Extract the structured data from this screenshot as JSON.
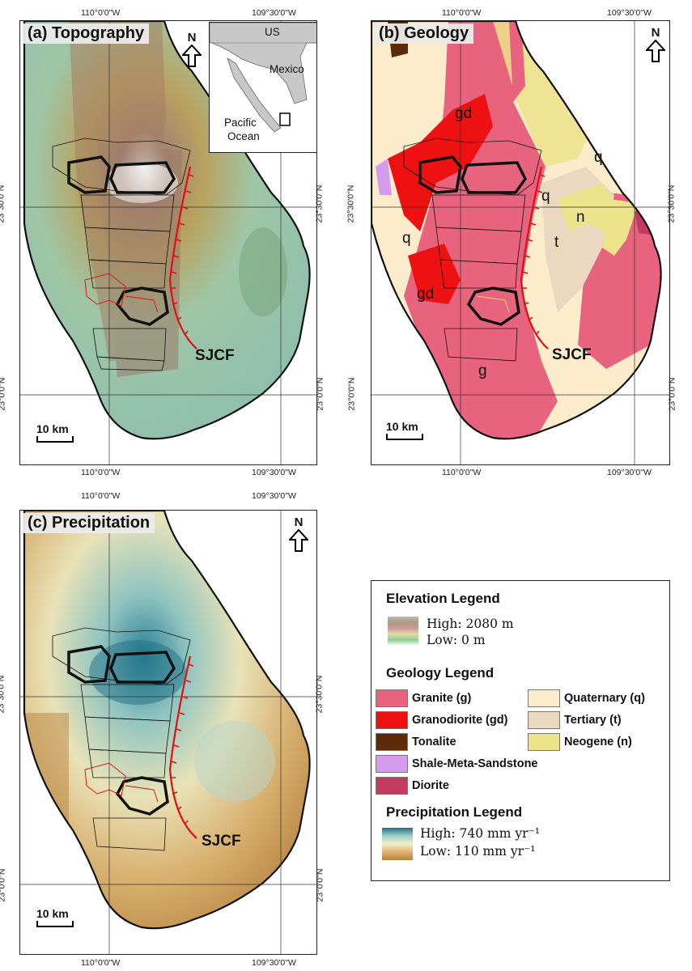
{
  "panels": {
    "a": {
      "title": "(a) Topography"
    },
    "b": {
      "title": "(b) Geology"
    },
    "c": {
      "title": "(c) Precipitation"
    }
  },
  "coords": {
    "lon1": "110°0'0\"W",
    "lon2": "109°30'0\"W",
    "lat1": "23°30'0\"N",
    "lat2": "23°0'0\"N"
  },
  "north_label": "N",
  "scale_label": "10 km",
  "fault_label": "SJCF",
  "inset": {
    "us": "US",
    "mexico": "Mexico",
    "ocean_line1": "Pacific",
    "ocean_line2": "Ocean"
  },
  "geology_map_labels": {
    "gd": "gd",
    "q": "q",
    "n": "n",
    "t": "t",
    "g": "g"
  },
  "legend": {
    "elevation": {
      "title": "Elevation Legend",
      "high": "High: 2080 m",
      "low": "Low: 0 m"
    },
    "geology": {
      "title": "Geology Legend",
      "items": [
        {
          "label": "Granite (g)",
          "color": "#e8637e"
        },
        {
          "label": "Granodiorite (gd)",
          "color": "#ee1111"
        },
        {
          "label": "Tonalite",
          "color": "#5c2a06"
        },
        {
          "label": "Shale-Meta-Sandstone",
          "color": "#d59bec"
        },
        {
          "label": "Diorite",
          "color": "#c23a5e"
        },
        {
          "label": "Quaternary (q)",
          "color": "#fdeccb"
        },
        {
          "label": "Tertiary (t)",
          "color": "#ead8c0"
        },
        {
          "label": "Neogene (n)",
          "color": "#ece38a"
        }
      ]
    },
    "precipitation": {
      "title": "Precipitation Legend",
      "high": "High: 740 mm yr⁻¹",
      "low": "Low: 110 mm yr⁻¹"
    }
  },
  "colors": {
    "fault": "#dd1111",
    "topo_low": "#8fbfae",
    "topo_high": "#8b5a3c",
    "precip_high": "#2a7f95",
    "precip_low": "#b7823f",
    "granite": "#e8637e",
    "granodiorite": "#ee1111",
    "quaternary": "#fdeccb",
    "tertiary": "#ead8c0",
    "neogene": "#ece38a"
  }
}
